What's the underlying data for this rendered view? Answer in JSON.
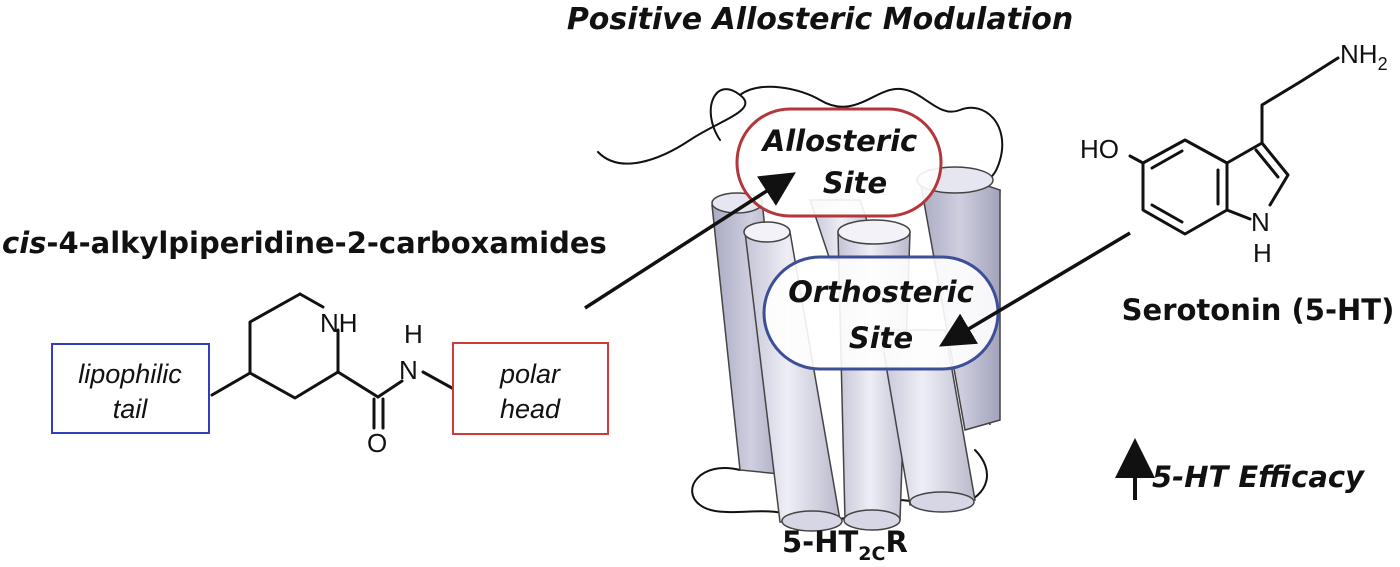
{
  "title": "Positive Allosteric Modulation",
  "compound_class": {
    "prefix": "cis",
    "rest": "-4-alkylpiperidine-2-carboxamides"
  },
  "left_structure": {
    "nh_label": "NH",
    "h_label": "H",
    "n_label": "N",
    "o_label": "O",
    "tail_box": {
      "line1": "lipophilic",
      "line2": "tail",
      "color": "#2f3fbf"
    },
    "head_box": {
      "line1": "polar",
      "line2": "head",
      "color": "#d23a3a"
    }
  },
  "receptor": {
    "label_main": "5-HT",
    "label_sub": "2C",
    "label_end": "R",
    "allosteric_site": {
      "line1": "Allosteric",
      "line2": "Site",
      "color": "#b5363a"
    },
    "orthosteric_site": {
      "line1": "Orthosteric",
      "line2": "Site",
      "color": "#3d4f96"
    }
  },
  "serotonin": {
    "name": "Serotonin (5-HT)",
    "ho_label": "HO",
    "nh2_label": "NH",
    "nh2_sub": "2",
    "nh_n": "N",
    "nh_h": "H"
  },
  "efficacy": {
    "label": "5-HT Efficacy"
  }
}
